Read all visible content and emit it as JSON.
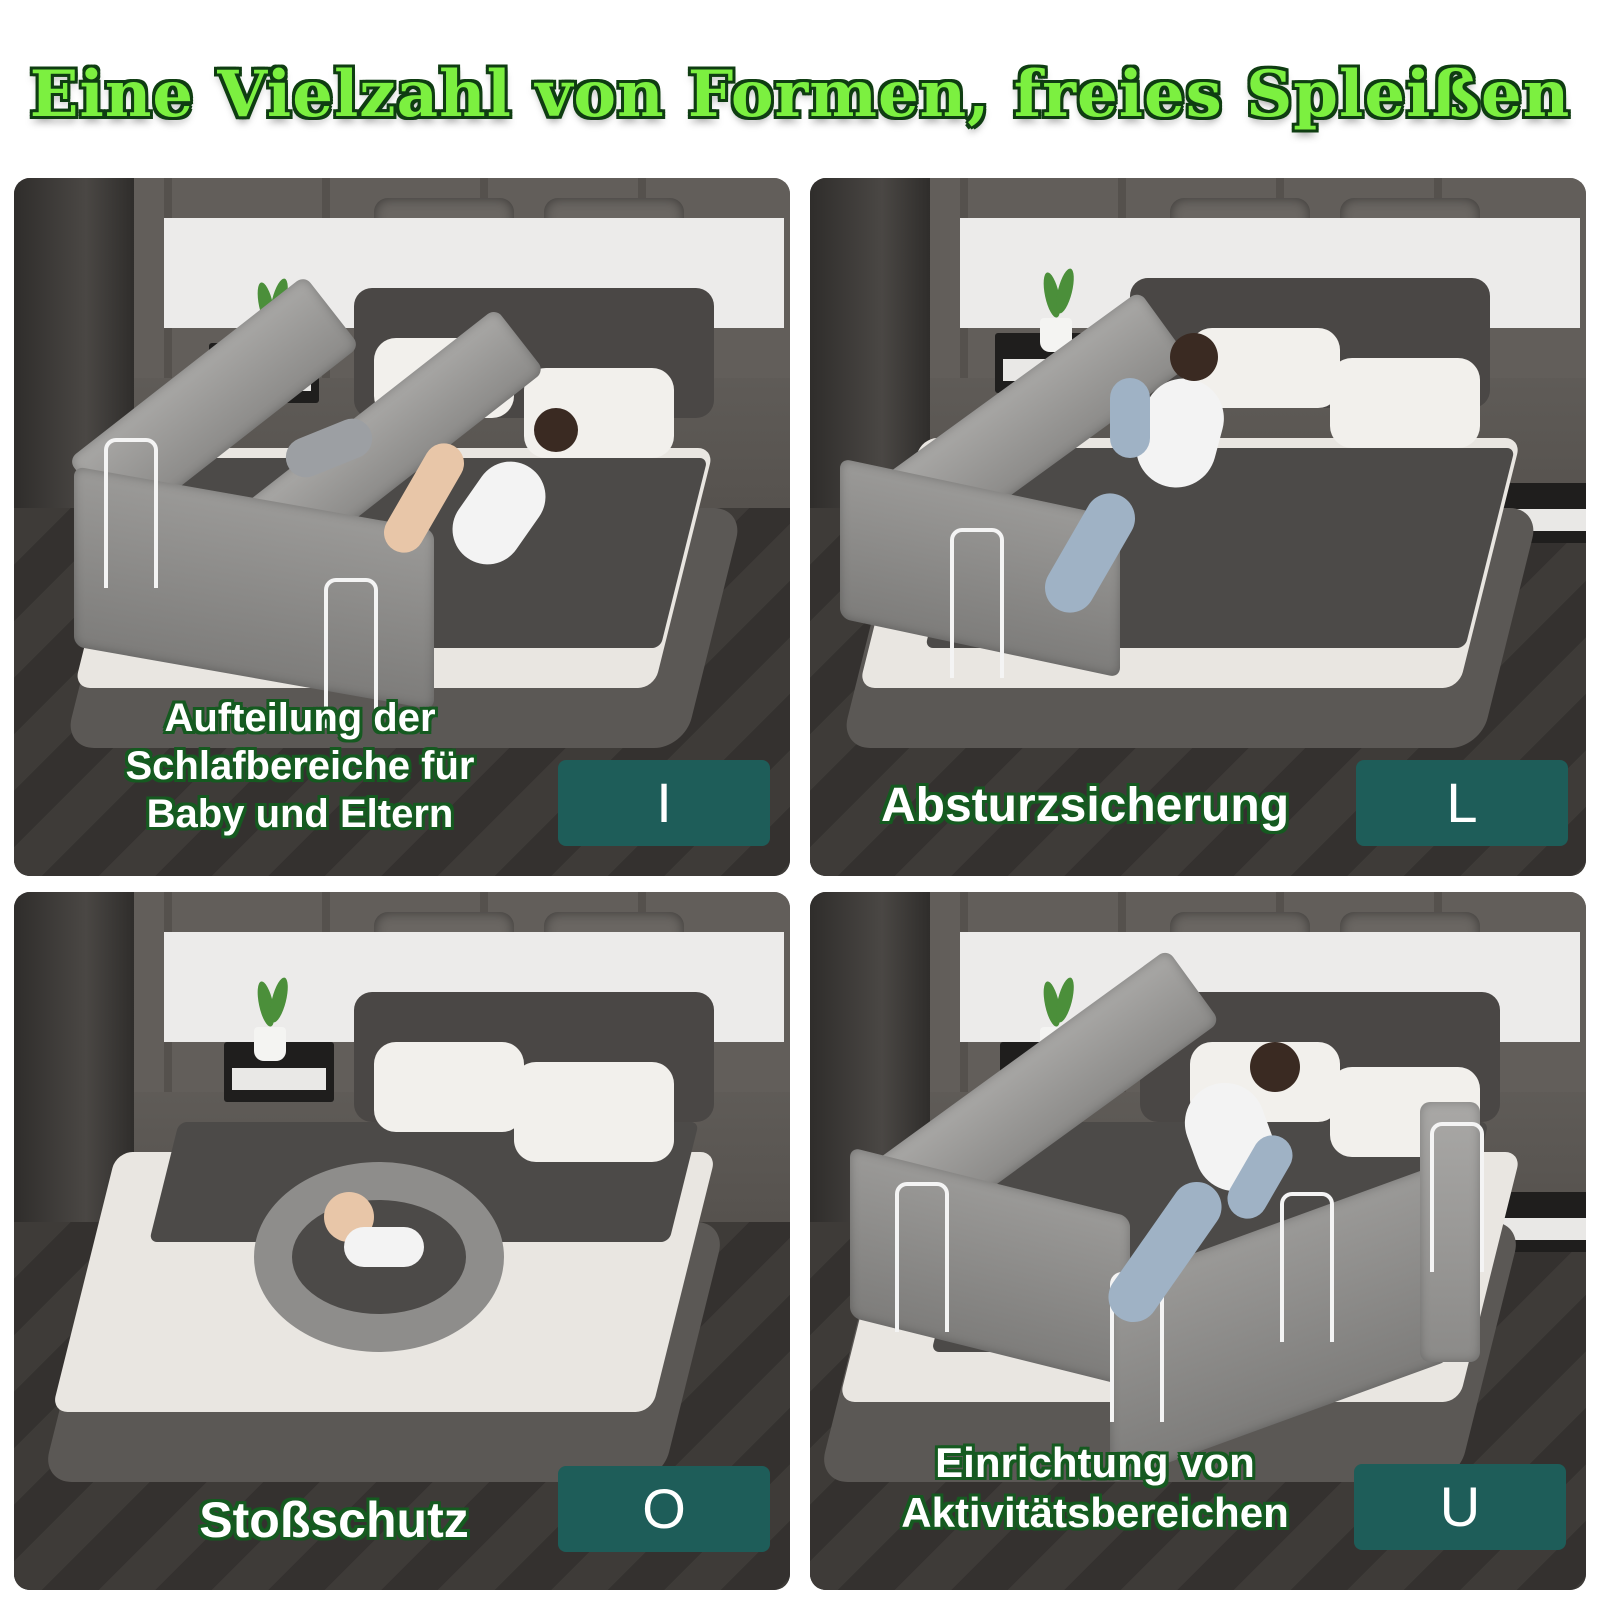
{
  "title": "Eine Vielzahl von Formen, freies Spleißen",
  "panels": [
    {
      "caption_lines": [
        "Aufteilung der",
        "Schlafbereiche für",
        "Baby und Eltern"
      ],
      "shape": "I"
    },
    {
      "caption_lines": [
        "Absturzsicherung"
      ],
      "shape": "L"
    },
    {
      "caption_lines": [
        "Stoßschutz"
      ],
      "shape": "O"
    },
    {
      "caption_lines": [
        "Einrichtung von",
        "Aktivitätsbereichen"
      ],
      "shape": "U"
    }
  ],
  "colors": {
    "title_fill": "#7cf040",
    "title_outline": "#0f3d12",
    "caption_outline": "#155a20",
    "shape_box": "#1e5d59",
    "bed_rail_fabric": "#9b9a98"
  }
}
